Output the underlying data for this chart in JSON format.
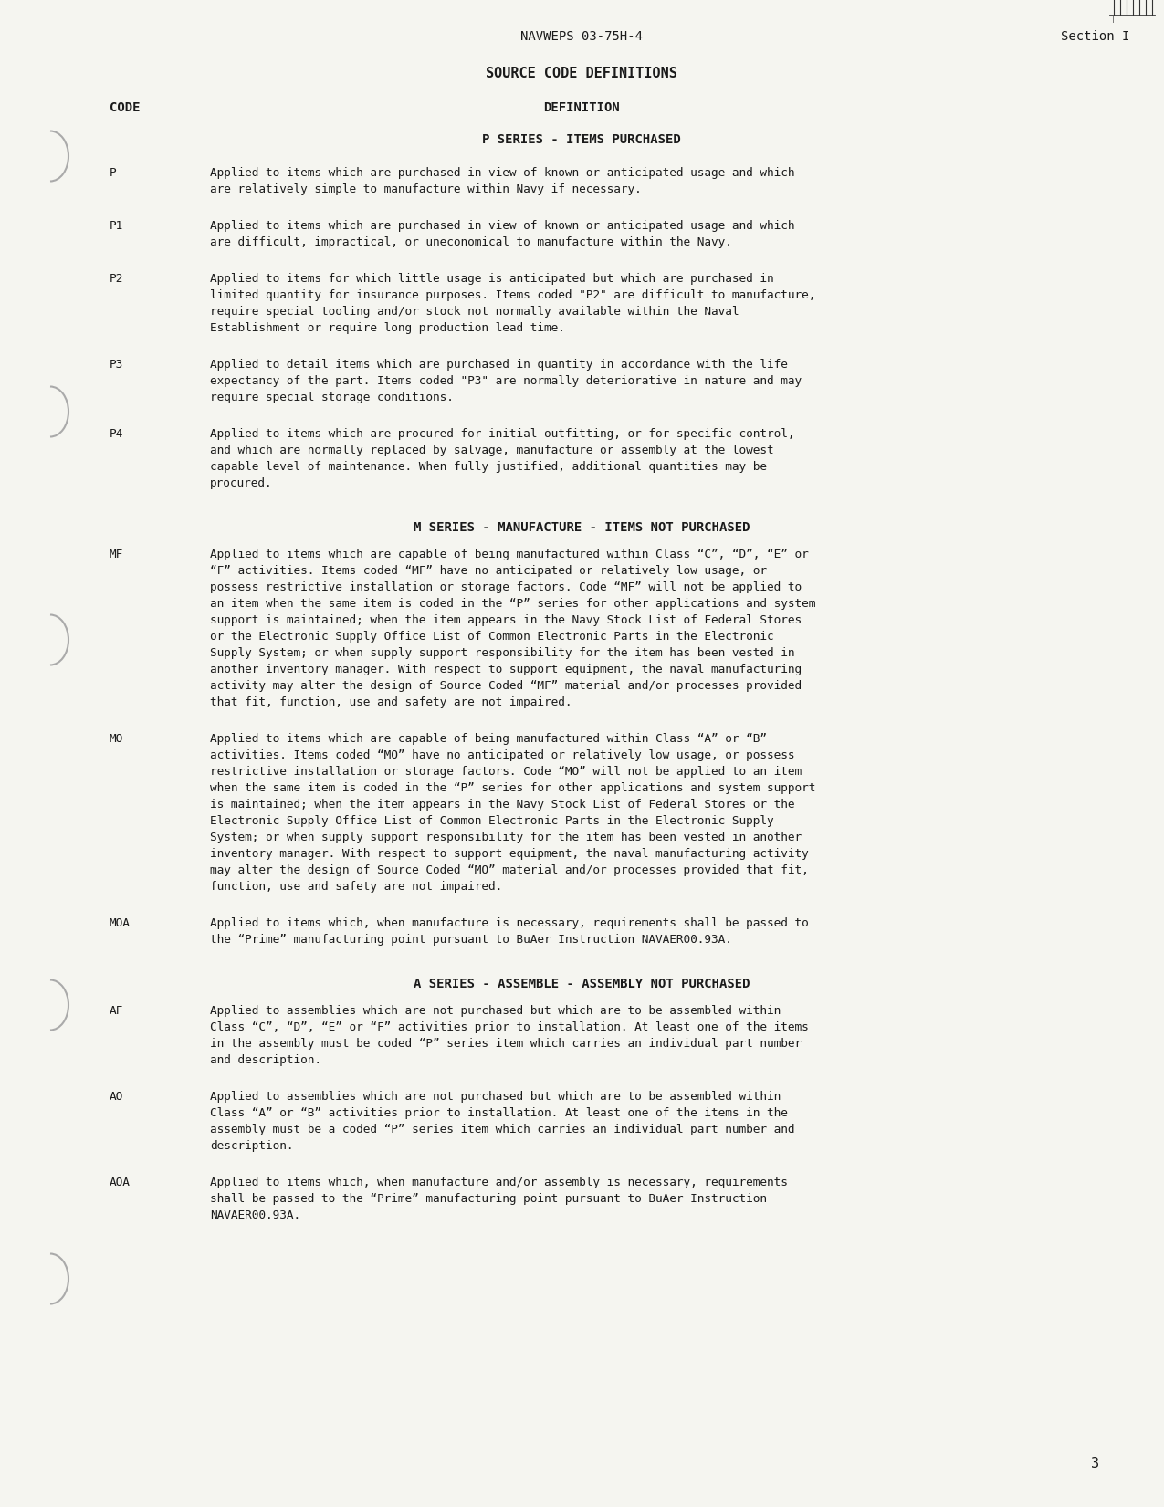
{
  "bg_color": "#f5f5f0",
  "text_color": "#1a1a1a",
  "header_left": "NAVWEPS 03-75H-4",
  "header_right": "Section I",
  "page_number": "3",
  "title": "SOURCE CODE DEFINITIONS",
  "col_code_label": "CODE",
  "col_def_label": "DEFINITION",
  "section1_title": "P SERIES - ITEMS PURCHASED",
  "section2_title": "M SERIES - MANUFACTURE - ITEMS NOT PURCHASED",
  "section3_title": "A SERIES - ASSEMBLE - ASSEMBLY NOT PURCHASED",
  "entries": [
    {
      "code": "P",
      "text": "Applied to items which are purchased in view of known or anticipated usage and which are relatively simple to manufacture within Navy if necessary."
    },
    {
      "code": "P1",
      "text": "Applied to items which are purchased in view of known or anticipated usage and which are difficult, impractical, or uneconomical to manufacture within the Navy."
    },
    {
      "code": "P2",
      "text": "Applied to items for which little usage is anticipated but which are purchased in limited quantity for insurance purposes.  Items coded \"P2\" are difficult to manufacture, require special tooling and/or stock not normally available within the Naval Establishment or require long production lead time."
    },
    {
      "code": "P3",
      "text": "Applied to detail items which are purchased in quantity in accordance with the life expectancy of the part.  Items coded \"P3\" are normally deteriorative in nature and may require special storage conditions."
    },
    {
      "code": "P4",
      "text": "Applied to items which are procured for initial outfitting, or for specific control, and which are normally replaced by salvage, manufacture or assembly at the lowest capable level of maintenance. When fully justified, additional quantities may be procured."
    },
    {
      "code": "MF",
      "text": "Applied to items which are capable of being manufactured within Class “C”, “D”, “E” or “F” activities.  Items coded “MF” have no anticipated or relatively low usage, or possess restrictive installation or storage factors.  Code “MF” will not be applied to an item when the same item is coded in the “P” series for other applications and system support is maintained; when the item appears in the Navy Stock List of Federal Stores or the Electronic Supply Office List of Common Electronic Parts in the Electronic Supply System; or when supply support responsibility for the item has been vested in another inventory manager.  With respect to support equipment, the naval manufacturing activity may alter the design of Source Coded “MF” material and/or processes provided that fit, function, use and safety are not impaired."
    },
    {
      "code": "MO",
      "text": "Applied to items which are capable of being manufactured within Class “A” or “B” activities.  Items coded “MO” have no anticipated or relatively low usage, or possess restrictive installation or storage factors.  Code “MO” will not be applied to an item when the same item is coded in the “P” series for other applications and system support is maintained; when the item appears in the Navy Stock List of Federal Stores or the Electronic Supply Office List of Common Electronic Parts in the Electronic Supply System; or when supply support responsibility for the item has been vested in another inventory manager.  With respect to support equipment, the naval manufacturing activity may alter the design of Source Coded “MO” material and/or processes provided that fit, function, use and safety are not impaired."
    },
    {
      "code": "MOA",
      "text": "Applied to items which, when manufacture is necessary, requirements shall be passed to the “Prime” manufacturing point pursuant to BuAer Instruction NAVAER00.93A."
    },
    {
      "code": "AF",
      "text": "Applied to assemblies which are not purchased but which are to be assembled within Class “C”, “D”, “E” or “F” activities prior to installation.  At least one of the items in the assembly must be coded “P” series item which carries an individual part number and description."
    },
    {
      "code": "AO",
      "text": "Applied to assemblies which are not purchased but which are to be assembled within Class “A” or “B” activities prior to installation.  At least one of the items in the assembly must be a coded “P” series item which carries an individual part number and description."
    },
    {
      "code": "AOA",
      "text": "Applied to items which, when manufacture and/or assembly is necessary, requirements shall be passed to the “Prime” manufacturing point pursuant to BuAer Instruction NAVAER00.93A."
    }
  ],
  "section_breaks": {
    "after_P4": "M SERIES - MANUFACTURE - ITEMS NOT PURCHASED",
    "after_MOA": "A SERIES - ASSEMBLE - ASSEMBLY NOT PURCHASED"
  }
}
